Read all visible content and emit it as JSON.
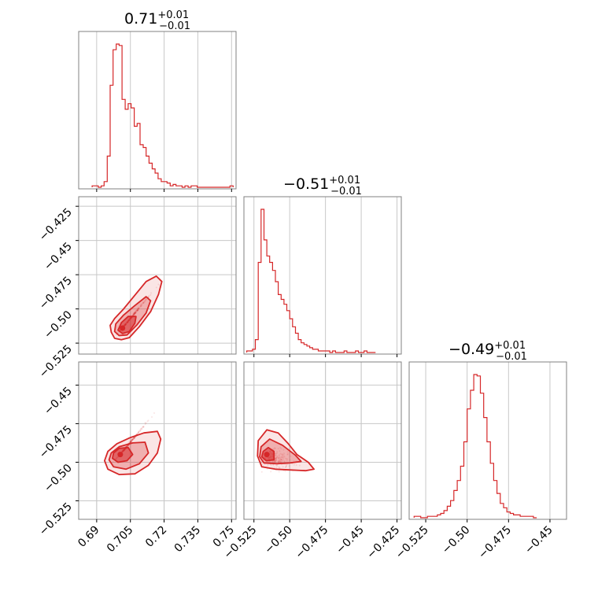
{
  "colors": {
    "series": "#d62728",
    "grid": "#c8c8c8",
    "frame": "#808080"
  },
  "chart_data": {
    "type": "corner",
    "parameters": 3,
    "panels": [
      {
        "kind": "histogram",
        "row": 0,
        "col": 0,
        "title": {
          "value": "0.71",
          "plus": "+0.01",
          "minus": "−0.01"
        },
        "xlim": [
          0.682,
          0.752
        ],
        "bins": [
          [
            0.688,
            0.6893,
            1
          ],
          [
            0.6893,
            0.6907,
            1
          ],
          [
            0.6907,
            0.692,
            0
          ],
          [
            0.692,
            0.6933,
            1
          ],
          [
            0.6933,
            0.6947,
            4
          ],
          [
            0.6947,
            0.696,
            22
          ],
          [
            0.696,
            0.6973,
            72
          ],
          [
            0.6973,
            0.6987,
            97
          ],
          [
            0.6987,
            0.7,
            101
          ],
          [
            0.7,
            0.7013,
            100
          ],
          [
            0.7013,
            0.7027,
            62
          ],
          [
            0.7027,
            0.704,
            55
          ],
          [
            0.704,
            0.7053,
            59
          ],
          [
            0.7053,
            0.7067,
            56
          ],
          [
            0.7067,
            0.708,
            43
          ],
          [
            0.708,
            0.7093,
            45
          ],
          [
            0.7093,
            0.7107,
            30
          ],
          [
            0.7107,
            0.712,
            28
          ],
          [
            0.712,
            0.7133,
            22
          ],
          [
            0.7133,
            0.7147,
            17
          ],
          [
            0.7147,
            0.716,
            13
          ],
          [
            0.716,
            0.7173,
            10
          ],
          [
            0.7173,
            0.7187,
            6
          ],
          [
            0.7187,
            0.72,
            4
          ],
          [
            0.72,
            0.7213,
            4
          ],
          [
            0.7213,
            0.7227,
            3
          ],
          [
            0.7227,
            0.724,
            1
          ],
          [
            0.724,
            0.7253,
            2
          ],
          [
            0.7253,
            0.7267,
            1
          ],
          [
            0.7267,
            0.728,
            1
          ],
          [
            0.728,
            0.7293,
            0
          ],
          [
            0.7293,
            0.7307,
            1
          ],
          [
            0.7307,
            0.732,
            0
          ],
          [
            0.732,
            0.7333,
            1
          ],
          [
            0.7333,
            0.7347,
            1
          ],
          [
            0.7347,
            0.736,
            0
          ],
          [
            0.736,
            0.7373,
            0
          ],
          [
            0.7373,
            0.7387,
            0
          ],
          [
            0.7387,
            0.74,
            0
          ],
          [
            0.74,
            0.7413,
            0
          ],
          [
            0.7413,
            0.7427,
            0
          ],
          [
            0.7427,
            0.744,
            0
          ],
          [
            0.744,
            0.7453,
            0
          ],
          [
            0.7453,
            0.7467,
            0
          ],
          [
            0.7467,
            0.748,
            0
          ],
          [
            0.748,
            0.7493,
            0
          ],
          [
            0.7493,
            0.7507,
            1
          ]
        ],
        "xticks": [
          0.69,
          0.705,
          0.72,
          0.735,
          0.75
        ]
      },
      {
        "kind": "histogram",
        "row": 1,
        "col": 1,
        "title": {
          "value": "−0.51",
          "plus": "+0.01",
          "minus": "−0.01"
        },
        "xlim": [
          -0.532,
          -0.422
        ],
        "bins": [
          [
            -0.53,
            -0.528,
            1
          ],
          [
            -0.528,
            -0.526,
            1
          ],
          [
            -0.526,
            -0.524,
            2
          ],
          [
            -0.524,
            -0.522,
            8
          ],
          [
            -0.522,
            -0.52,
            56
          ],
          [
            -0.52,
            -0.518,
            89
          ],
          [
            -0.518,
            -0.516,
            70
          ],
          [
            -0.516,
            -0.514,
            60
          ],
          [
            -0.514,
            -0.512,
            56
          ],
          [
            -0.512,
            -0.51,
            51
          ],
          [
            -0.51,
            -0.508,
            44
          ],
          [
            -0.508,
            -0.506,
            36
          ],
          [
            -0.506,
            -0.504,
            33
          ],
          [
            -0.504,
            -0.502,
            30
          ],
          [
            -0.502,
            -0.5,
            26
          ],
          [
            -0.5,
            -0.498,
            21
          ],
          [
            -0.498,
            -0.496,
            16
          ],
          [
            -0.496,
            -0.494,
            12
          ],
          [
            -0.494,
            -0.492,
            8
          ],
          [
            -0.492,
            -0.49,
            6
          ],
          [
            -0.49,
            -0.488,
            5
          ],
          [
            -0.488,
            -0.486,
            4
          ],
          [
            -0.486,
            -0.484,
            3
          ],
          [
            -0.484,
            -0.482,
            2
          ],
          [
            -0.482,
            -0.48,
            2
          ],
          [
            -0.48,
            -0.478,
            1
          ],
          [
            -0.478,
            -0.476,
            1
          ],
          [
            -0.476,
            -0.474,
            1
          ],
          [
            -0.474,
            -0.472,
            1
          ],
          [
            -0.472,
            -0.47,
            0
          ],
          [
            -0.47,
            -0.468,
            1
          ],
          [
            -0.468,
            -0.466,
            0
          ],
          [
            -0.466,
            -0.464,
            0
          ],
          [
            -0.464,
            -0.462,
            0
          ],
          [
            -0.462,
            -0.46,
            1
          ],
          [
            -0.46,
            -0.458,
            0
          ],
          [
            -0.458,
            -0.456,
            0
          ],
          [
            -0.456,
            -0.454,
            0
          ],
          [
            -0.454,
            -0.452,
            1
          ],
          [
            -0.452,
            -0.45,
            0
          ],
          [
            -0.45,
            -0.448,
            0
          ],
          [
            -0.448,
            -0.446,
            1
          ],
          [
            -0.446,
            -0.444,
            0
          ],
          [
            -0.444,
            -0.44,
            0
          ]
        ],
        "xticks": [
          -0.525,
          -0.5,
          -0.475,
          -0.45,
          -0.425
        ]
      },
      {
        "kind": "histogram",
        "row": 2,
        "col": 2,
        "title": {
          "value": "−0.49",
          "plus": "+0.01",
          "minus": "−0.01"
        },
        "xlim": [
          -0.535,
          -0.44
        ],
        "bins": [
          [
            -0.532,
            -0.53,
            1
          ],
          [
            -0.53,
            -0.528,
            1
          ],
          [
            -0.528,
            -0.526,
            0
          ],
          [
            -0.526,
            -0.524,
            0
          ],
          [
            -0.524,
            -0.522,
            1
          ],
          [
            -0.522,
            -0.52,
            1
          ],
          [
            -0.52,
            -0.518,
            1
          ],
          [
            -0.518,
            -0.516,
            2
          ],
          [
            -0.516,
            -0.514,
            3
          ],
          [
            -0.514,
            -0.512,
            5
          ],
          [
            -0.512,
            -0.51,
            8
          ],
          [
            -0.51,
            -0.508,
            12
          ],
          [
            -0.508,
            -0.506,
            19
          ],
          [
            -0.506,
            -0.504,
            26
          ],
          [
            -0.504,
            -0.502,
            36
          ],
          [
            -0.502,
            -0.5,
            53
          ],
          [
            -0.5,
            -0.498,
            76
          ],
          [
            -0.498,
            -0.496,
            89
          ],
          [
            -0.496,
            -0.494,
            100
          ],
          [
            -0.494,
            -0.492,
            99
          ],
          [
            -0.492,
            -0.49,
            87
          ],
          [
            -0.49,
            -0.488,
            70
          ],
          [
            -0.488,
            -0.486,
            53
          ],
          [
            -0.486,
            -0.484,
            38
          ],
          [
            -0.484,
            -0.482,
            26
          ],
          [
            -0.482,
            -0.48,
            17
          ],
          [
            -0.48,
            -0.478,
            10
          ],
          [
            -0.478,
            -0.476,
            7
          ],
          [
            -0.476,
            -0.474,
            4
          ],
          [
            -0.474,
            -0.472,
            3
          ],
          [
            -0.472,
            -0.47,
            2
          ],
          [
            -0.47,
            -0.468,
            2
          ],
          [
            -0.468,
            -0.466,
            1
          ],
          [
            -0.466,
            -0.464,
            1
          ],
          [
            -0.464,
            -0.462,
            1
          ],
          [
            -0.462,
            -0.46,
            1
          ],
          [
            -0.46,
            -0.458,
            0
          ]
        ],
        "xticks": [
          -0.525,
          -0.5,
          -0.475,
          -0.45
        ]
      },
      {
        "kind": "contour2d",
        "row": 1,
        "col": 0,
        "xlim": [
          0.682,
          0.752
        ],
        "ylim": [
          -0.533,
          -0.418
        ],
        "center": [
          0.7015,
          -0.514
        ],
        "levels": [
          [
            [
              0.6965,
              -0.517
            ],
            [
              0.698,
              -0.5215
            ],
            [
              0.701,
              -0.5225
            ],
            [
              0.7045,
              -0.521
            ],
            [
              0.709,
              -0.513
            ],
            [
              0.714,
              -0.502
            ],
            [
              0.7175,
              -0.4895
            ],
            [
              0.719,
              -0.48
            ],
            [
              0.7165,
              -0.476
            ],
            [
              0.712,
              -0.48
            ],
            [
              0.707,
              -0.49
            ],
            [
              0.702,
              -0.5
            ],
            [
              0.698,
              -0.507
            ],
            [
              0.696,
              -0.512
            ]
          ],
          [
            [
              0.698,
              -0.5165
            ],
            [
              0.7,
              -0.5195
            ],
            [
              0.7035,
              -0.519
            ],
            [
              0.708,
              -0.5115
            ],
            [
              0.712,
              -0.503
            ],
            [
              0.714,
              -0.494
            ],
            [
              0.712,
              -0.491
            ],
            [
              0.707,
              -0.4975
            ],
            [
              0.702,
              -0.5045
            ],
            [
              0.6985,
              -0.511
            ]
          ],
          [
            [
              0.6995,
              -0.5155
            ],
            [
              0.7015,
              -0.518
            ],
            [
              0.7045,
              -0.5165
            ],
            [
              0.707,
              -0.5105
            ],
            [
              0.7075,
              -0.5055
            ],
            [
              0.704,
              -0.5055
            ],
            [
              0.701,
              -0.51
            ]
          ]
        ],
        "yticks": [
          -0.525,
          -0.5,
          -0.475,
          -0.45,
          -0.425
        ]
      },
      {
        "kind": "contour2d",
        "row": 2,
        "col": 0,
        "xlim": [
          0.682,
          0.752
        ],
        "ylim": [
          -0.537,
          -0.435
        ],
        "center": [
          0.7005,
          -0.495
        ],
        "levels": [
          [
            [
              0.6935,
              -0.499
            ],
            [
              0.695,
              -0.5045
            ],
            [
              0.7,
              -0.508
            ],
            [
              0.707,
              -0.5075
            ],
            [
              0.713,
              -0.502
            ],
            [
              0.717,
              -0.494
            ],
            [
              0.7185,
              -0.485
            ],
            [
              0.717,
              -0.48
            ],
            [
              0.711,
              -0.481
            ],
            [
              0.705,
              -0.484
            ],
            [
              0.699,
              -0.488
            ],
            [
              0.695,
              -0.493
            ]
          ],
          [
            [
              0.6955,
              -0.4985
            ],
            [
              0.6975,
              -0.503
            ],
            [
              0.703,
              -0.5045
            ],
            [
              0.709,
              -0.501
            ],
            [
              0.713,
              -0.494
            ],
            [
              0.7115,
              -0.487
            ],
            [
              0.706,
              -0.4875
            ],
            [
              0.7,
              -0.49
            ],
            [
              0.6965,
              -0.494
            ]
          ],
          [
            [
              0.697,
              -0.4975
            ],
            [
              0.6995,
              -0.5
            ],
            [
              0.7035,
              -0.499
            ],
            [
              0.706,
              -0.495
            ],
            [
              0.704,
              -0.4905
            ],
            [
              0.7,
              -0.491
            ],
            [
              0.6975,
              -0.494
            ]
          ]
        ],
        "xticks": [
          0.69,
          0.705,
          0.72,
          0.735,
          0.75
        ],
        "yticks": [
          -0.525,
          -0.5,
          -0.475,
          -0.45
        ]
      },
      {
        "kind": "contour2d",
        "row": 2,
        "col": 1,
        "xlim": [
          -0.532,
          -0.422
        ],
        "ylim": [
          -0.537,
          -0.435
        ],
        "center": [
          -0.516,
          -0.495
        ],
        "levels": [
          [
            [
              -0.5225,
              -0.496
            ],
            [
              -0.5195,
              -0.503
            ],
            [
              -0.51,
              -0.5045
            ],
            [
              -0.499,
              -0.505
            ],
            [
              -0.489,
              -0.5055
            ],
            [
              -0.483,
              -0.5045
            ],
            [
              -0.487,
              -0.5
            ],
            [
              -0.495,
              -0.495
            ],
            [
              -0.501,
              -0.488
            ],
            [
              -0.508,
              -0.481
            ],
            [
              -0.516,
              -0.479
            ],
            [
              -0.522,
              -0.486
            ]
          ],
          [
            [
              -0.521,
              -0.4965
            ],
            [
              -0.518,
              -0.5005
            ],
            [
              -0.509,
              -0.501
            ],
            [
              -0.5,
              -0.5005
            ],
            [
              -0.492,
              -0.4995
            ],
            [
              -0.496,
              -0.4955
            ],
            [
              -0.505,
              -0.489
            ],
            [
              -0.514,
              -0.485
            ],
            [
              -0.52,
              -0.49
            ]
          ],
          [
            [
              -0.5195,
              -0.4965
            ],
            [
              -0.5165,
              -0.499
            ],
            [
              -0.511,
              -0.4985
            ],
            [
              -0.511,
              -0.493
            ],
            [
              -0.515,
              -0.4905
            ],
            [
              -0.5185,
              -0.493
            ]
          ]
        ],
        "xticks": [
          -0.525,
          -0.5,
          -0.475,
          -0.45,
          -0.425
        ]
      }
    ]
  }
}
